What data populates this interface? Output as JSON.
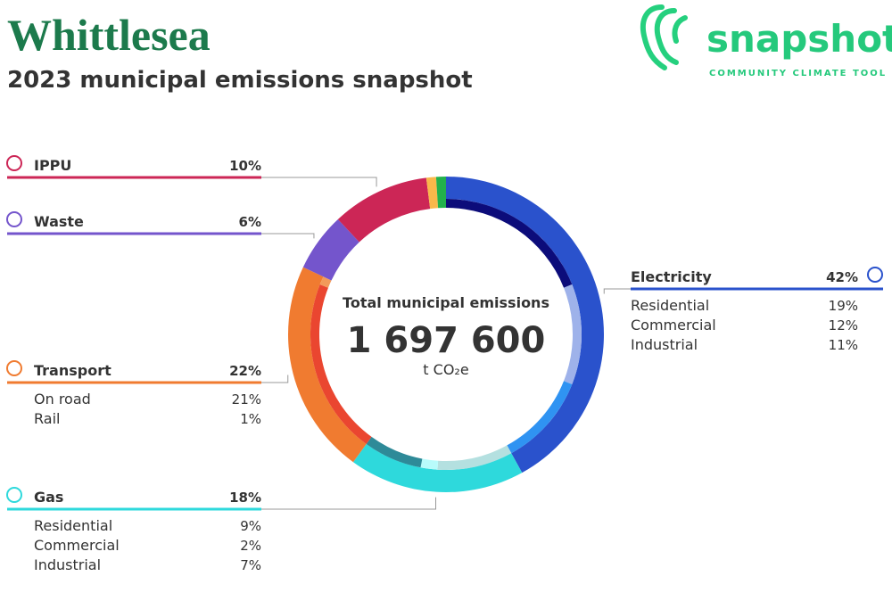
{
  "chart_data": {
    "type": "donut",
    "title": "Whittlesea",
    "subtitle": "2023 municipal emissions snapshot",
    "center_label": "Total municipal emissions",
    "total": "1 697 600",
    "unit": "t CO₂e",
    "sectors": [
      {
        "name": "Electricity",
        "value": 42,
        "value_label": "42%",
        "color": "#2a52cc",
        "subsectors": [
          {
            "name": "Residential",
            "value": 19,
            "value_label": "19%",
            "color": "#0c0c7a"
          },
          {
            "name": "Commercial",
            "value": 12,
            "value_label": "12%",
            "color": "#9eb2ea"
          },
          {
            "name": "Industrial",
            "value": 11,
            "value_label": "11%",
            "color": "#2f93f2"
          }
        ]
      },
      {
        "name": "Gas",
        "value": 18,
        "value_label": "18%",
        "color": "#2ed9dc",
        "subsectors": [
          {
            "name": "Residential",
            "value": 9,
            "value_label": "9%",
            "color": "#b4e0e0"
          },
          {
            "name": "Commercial",
            "value": 2,
            "value_label": "2%",
            "color": "#b8fbfb"
          },
          {
            "name": "Industrial",
            "value": 7,
            "value_label": "7%",
            "color": "#2e8a98"
          }
        ]
      },
      {
        "name": "Transport",
        "value": 22,
        "value_label": "22%",
        "color": "#f07b30",
        "subsectors": [
          {
            "name": "On road",
            "value": 21,
            "value_label": "21%",
            "color": "#ea4630"
          },
          {
            "name": "Rail",
            "value": 1,
            "value_label": "1%",
            "color": "#f29a5a"
          }
        ]
      },
      {
        "name": "Waste",
        "value": 6,
        "value_label": "6%",
        "color": "#7455cc",
        "subsectors": []
      },
      {
        "name": "IPPU",
        "value": 10,
        "value_label": "10%",
        "color": "#cc2656",
        "subsectors": []
      },
      {
        "name": null,
        "value": 1,
        "color": "#f9b84a",
        "subsectors": []
      },
      {
        "name": null,
        "value": 1,
        "color": "#22b14c",
        "subsectors": []
      }
    ]
  },
  "logo": {
    "name": "snapshot",
    "tagline": "COMMUNITY CLIMATE TOOL"
  }
}
